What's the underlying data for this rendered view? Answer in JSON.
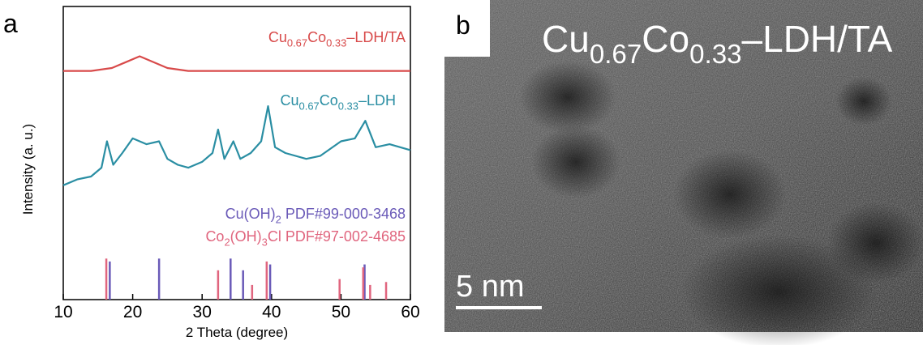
{
  "chart_data": {
    "type": "line",
    "panel": "a",
    "xlabel": "2 Theta (degree)",
    "ylabel": "Intensity (a. u.)",
    "xlim": [
      10,
      60
    ],
    "xticks": [
      10,
      20,
      30,
      40,
      50,
      60
    ],
    "ylim": [
      0,
      100
    ],
    "series": [
      {
        "name": "Cu0.67Co0.33–LDH/TA",
        "color": "#d84a4a",
        "kind": "line",
        "x": [
          10,
          14,
          17,
          19,
          21,
          23,
          25,
          28,
          35,
          45,
          55,
          60
        ],
        "values": [
          78,
          78,
          79,
          81,
          83,
          81,
          79,
          78,
          78,
          78,
          78,
          78
        ]
      },
      {
        "name": "Cu0.67Co0.33–LDH",
        "color": "#2a8ea3",
        "kind": "line",
        "x": [
          10,
          12,
          14,
          15.5,
          16.3,
          17.2,
          18.5,
          20,
          22,
          23.8,
          25,
          26.5,
          28,
          30,
          31.5,
          32.3,
          33.2,
          34.5,
          35.5,
          37,
          38.5,
          39.5,
          40.5,
          42,
          45,
          47,
          50,
          52,
          53.5,
          55,
          57,
          60
        ],
        "values": [
          39,
          41,
          42,
          45,
          54,
          46,
          50,
          55,
          53,
          54,
          48,
          46,
          45,
          47,
          50,
          58,
          48,
          54,
          48,
          50,
          54,
          66,
          52,
          50,
          48,
          49,
          54,
          55,
          61,
          52,
          53,
          51
        ]
      },
      {
        "name": "Cu(OH)2 PDF#99-000-3468",
        "color": "#6a5ab8",
        "kind": "stick",
        "x": [
          16.7,
          23.8,
          34.1,
          35.9,
          39.8,
          53.4
        ],
        "values": [
          13,
          14,
          14,
          10,
          12,
          12
        ]
      },
      {
        "name": "Co2(OH)3Cl PDF#97-002-4685",
        "color": "#e0657e",
        "kind": "stick",
        "x": [
          16.2,
          32.3,
          37.2,
          39.3,
          49.8,
          53.2,
          54.2,
          56.5
        ],
        "values": [
          14,
          10,
          5,
          13,
          7,
          11,
          5,
          6
        ]
      }
    ]
  },
  "image": {
    "panel": "b",
    "title": "Cu0.67Co0.33–LDH/TA",
    "scale_bar": "5 nm"
  }
}
